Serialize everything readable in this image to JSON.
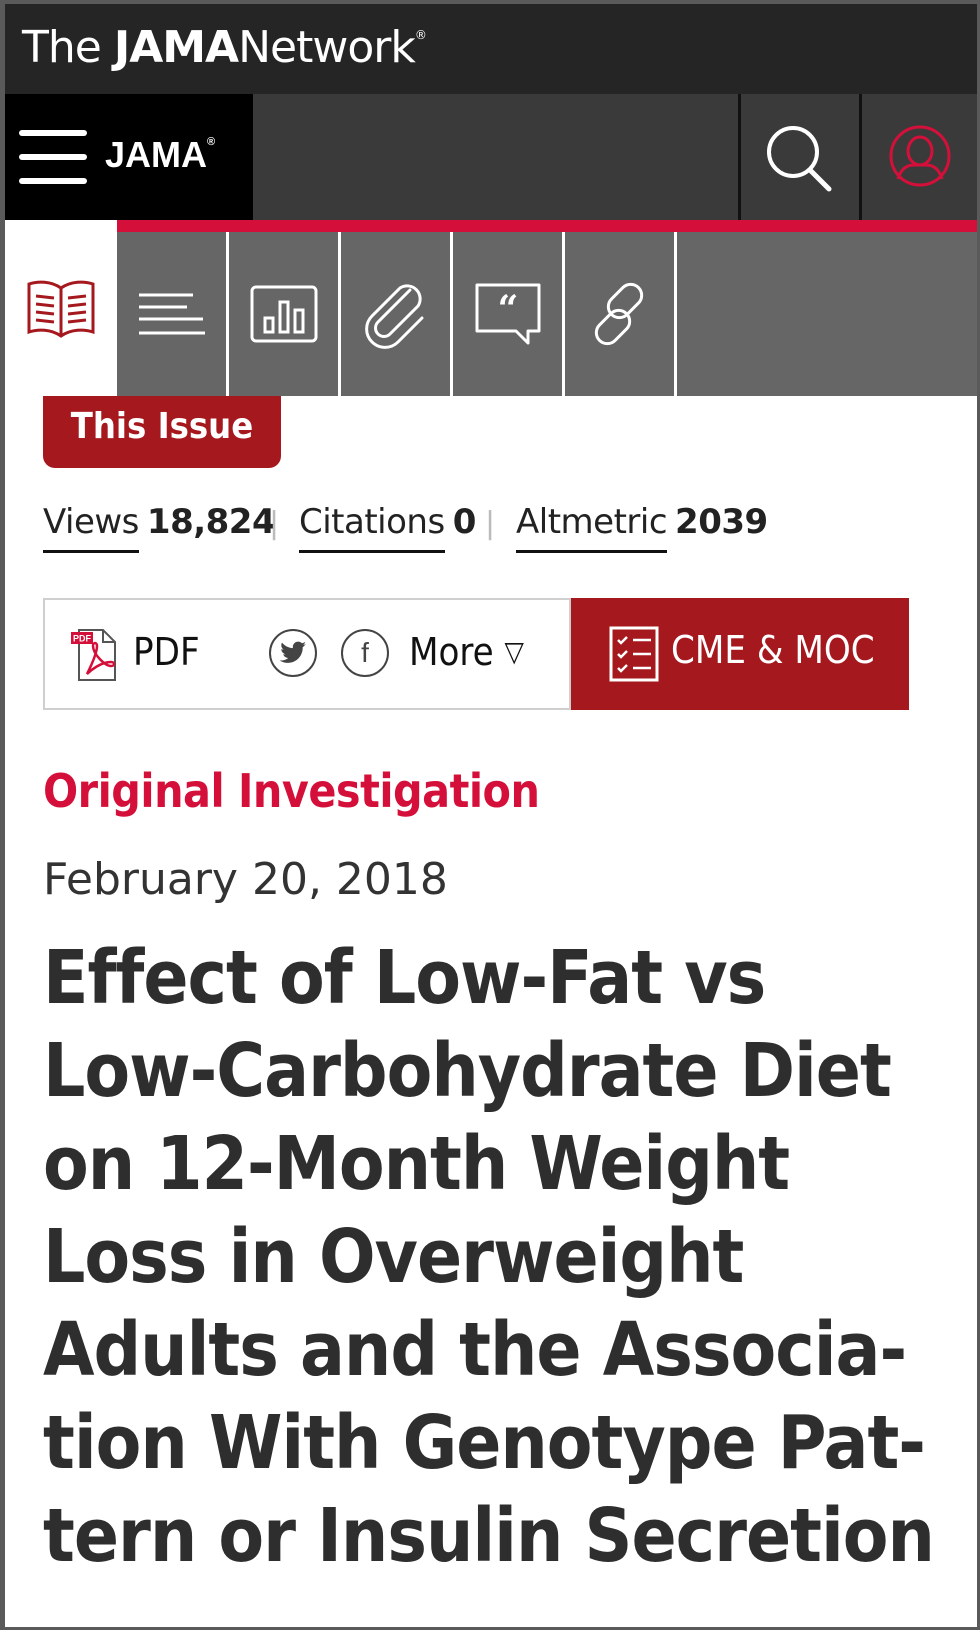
{
  "network": {
    "title_prefix": "The",
    "title_strong": "JAMA",
    "title_suffix": "Network",
    "registered": "®"
  },
  "jama_bar": {
    "logo": "JAMA",
    "registered": "®"
  },
  "tools": [
    {
      "name": "article",
      "icon": "open-book-icon"
    },
    {
      "name": "sections",
      "icon": "lines-icon"
    },
    {
      "name": "figures",
      "icon": "bar-chart-icon"
    },
    {
      "name": "supplements",
      "icon": "paperclip-icon"
    },
    {
      "name": "comments",
      "icon": "quote-bubble-icon"
    },
    {
      "name": "related",
      "icon": "chain-link-icon"
    }
  ],
  "this_issue_label": "This Issue",
  "metrics": {
    "views_label": "Views",
    "views_value": "18,824",
    "citations_label": "Citations",
    "citations_value": "0",
    "altmetric_label": "Altmetric",
    "altmetric_value": "2039",
    "separator": "|"
  },
  "actions": {
    "pdf_label": "PDF",
    "pdf_icon_text": "PDF",
    "more_label": "More",
    "more_arrow": "▽",
    "cme_label": "CME & MOC"
  },
  "colors": {
    "brand_red": "#a5181e",
    "accent_red": "#d4103a",
    "dark_bar": "#252525"
  },
  "article": {
    "type": "Original Investigation",
    "date": "February 20, 2018",
    "title_lines": [
      "Effect of Low-Fat vs",
      "Low-Carbohydrate Diet",
      "on 12-Month Weight",
      "Loss in Overweight",
      "Adults and the Associa-",
      "tion With Genotype Pat-",
      "tern or Insulin Secretion"
    ]
  }
}
